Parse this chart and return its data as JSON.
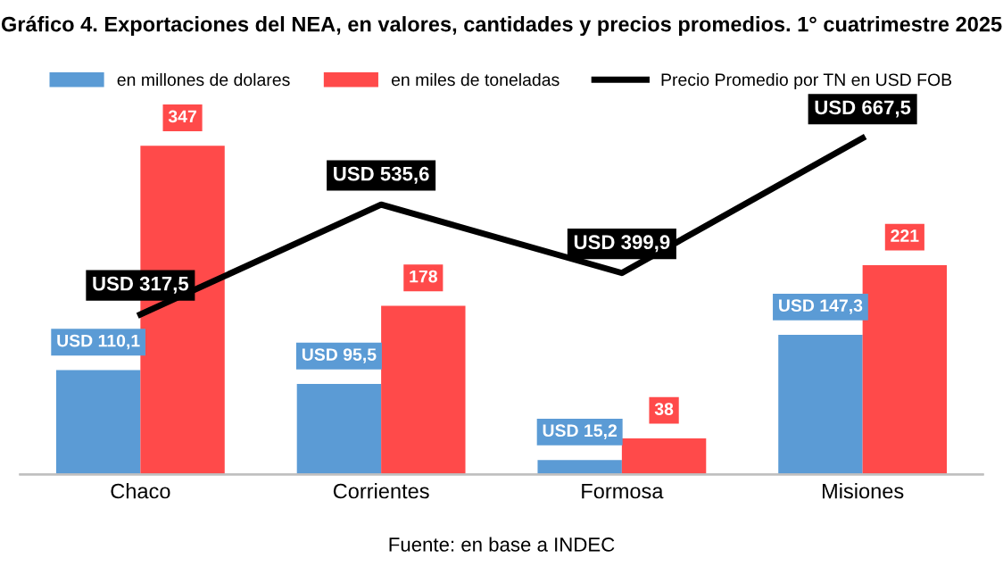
{
  "chart_data": {
    "type": "bar",
    "title": "Gráfico 4. Exportaciones del NEA, en valores, cantidades y precios promedios. 1° cuatrimestre 2025",
    "categories": [
      "Chaco",
      "Corrientes",
      "Formosa",
      "Misiones"
    ],
    "series": [
      {
        "name": "en millones de dolares",
        "color": "#5b9bd5",
        "values": [
          110.1,
          95.5,
          15.2,
          147.3
        ],
        "value_labels": [
          "USD 110,1",
          "USD 95,5",
          "USD 15,2",
          "USD 147,3"
        ]
      },
      {
        "name": "en miles de toneladas",
        "color": "#ff4a4a",
        "values": [
          347,
          178,
          38,
          221
        ],
        "value_labels": [
          "347",
          "178",
          "38",
          "221"
        ]
      },
      {
        "name": "Precio Promedio por TN en USD FOB",
        "type": "line",
        "axis": "y2",
        "color": "#000000",
        "values": [
          317.5,
          535.6,
          399.9,
          667.5
        ],
        "value_labels": [
          "USD 317,5",
          "USD 535,6",
          "USD 399,9",
          "USD 667,5"
        ]
      }
    ],
    "tick_labels": "x",
    "grid": false,
    "legend": "top",
    "marker": "none",
    "line_style": "solid",
    "annotations": [
      "Fuente: en base a INDEC"
    ]
  }
}
